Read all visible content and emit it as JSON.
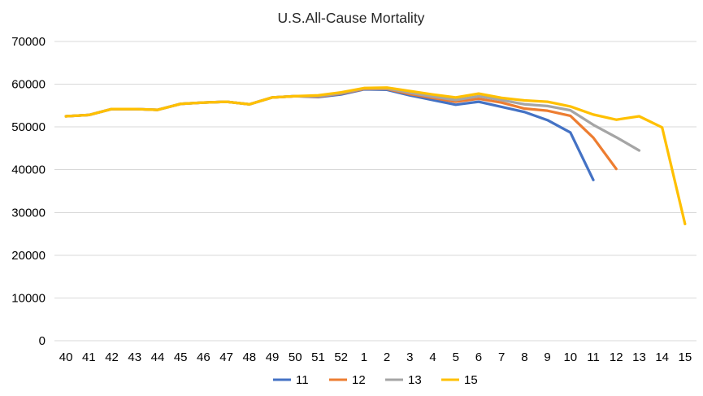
{
  "title": "U.S.All-Cause Mortality",
  "chart_data": {
    "type": "line",
    "title": "U.S.All-Cause Mortality",
    "categories": [
      "40",
      "41",
      "42",
      "43",
      "44",
      "45",
      "46",
      "47",
      "48",
      "49",
      "50",
      "51",
      "52",
      "1",
      "2",
      "3",
      "4",
      "5",
      "6",
      "7",
      "8",
      "9",
      "10",
      "11",
      "12",
      "13",
      "14",
      "15"
    ],
    "series": [
      {
        "name": "11",
        "color": "#4472C4",
        "values": [
          52500,
          52800,
          54200,
          54200,
          54000,
          55400,
          55700,
          55900,
          55300,
          56900,
          57200,
          57000,
          57600,
          58800,
          58700,
          57400,
          56300,
          55200,
          55900,
          54700,
          53500,
          51600,
          48700,
          37600,
          null,
          null,
          null,
          null
        ]
      },
      {
        "name": "12",
        "color": "#ED7D31",
        "values": [
          52500,
          52800,
          54200,
          54200,
          54000,
          55400,
          55700,
          55900,
          55300,
          56900,
          57200,
          57100,
          57800,
          58900,
          58900,
          57700,
          56800,
          55900,
          56600,
          55700,
          54300,
          53800,
          52600,
          47500,
          40200,
          null,
          null,
          null
        ]
      },
      {
        "name": "13",
        "color": "#A5A5A5",
        "values": [
          52500,
          52800,
          54200,
          54200,
          54000,
          55400,
          55700,
          55900,
          55300,
          56900,
          57200,
          57200,
          57900,
          59000,
          59000,
          58000,
          57100,
          56300,
          57200,
          56300,
          55300,
          54900,
          53900,
          50500,
          47600,
          44500,
          null,
          null
        ]
      },
      {
        "name": "15",
        "color": "#FFC000",
        "values": [
          52500,
          52800,
          54200,
          54200,
          54000,
          55400,
          55700,
          55900,
          55300,
          56900,
          57200,
          57400,
          58100,
          59100,
          59200,
          58400,
          57600,
          56900,
          57800,
          56800,
          56200,
          55900,
          54800,
          52900,
          51700,
          52500,
          49900,
          27300
        ]
      }
    ],
    "xlabel": "",
    "ylabel": "",
    "ylim": [
      0,
      70000
    ],
    "ytick_step": 10000,
    "ytick_labels": [
      "0",
      "10000",
      "20000",
      "30000",
      "40000",
      "50000",
      "60000",
      "70000"
    ],
    "grid": true,
    "legend_position": "bottom",
    "legend_entries": [
      "11",
      "12",
      "13",
      "15"
    ],
    "gridline_color": "#D9D9D9",
    "text_color": "#000000",
    "title_color": "#262626"
  }
}
